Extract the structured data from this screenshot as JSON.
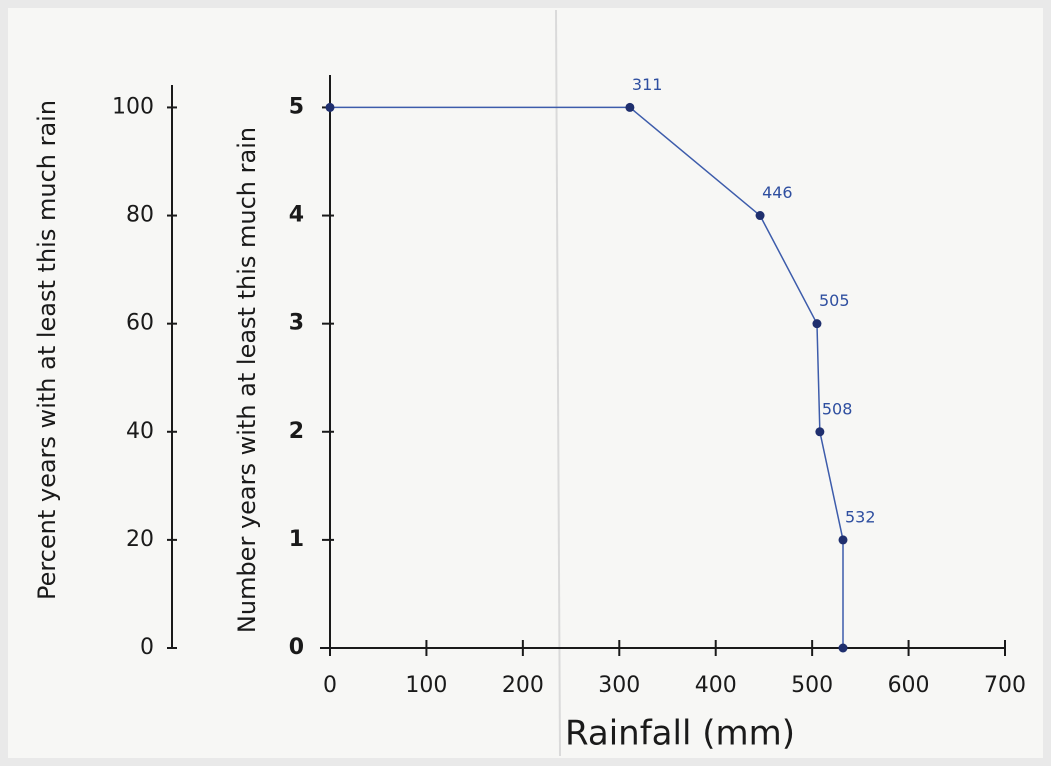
{
  "chart_data": {
    "type": "line",
    "x_label": "Rainfall (mm)",
    "y_label": "Number years with at least this much rain",
    "y2_label": "Percent years with at least this much rain",
    "x": [
      0,
      311,
      446,
      505,
      508,
      532,
      532
    ],
    "series": [
      {
        "color": "#3d5cab",
        "values": [
          5,
          5,
          4,
          3,
          2,
          1,
          0
        ]
      }
    ],
    "point_label_indices": [
      1,
      2,
      3,
      4,
      5
    ],
    "xlim": [
      0,
      700
    ],
    "xticks": [
      0,
      100,
      200,
      300,
      400,
      500,
      600,
      700
    ],
    "ylim": [
      0,
      5.3
    ],
    "yticks": [
      0,
      1,
      2,
      3,
      4,
      5
    ],
    "y2lim": [
      0,
      106
    ],
    "y2ticks": [
      0,
      20,
      40,
      60,
      80,
      100
    ]
  }
}
